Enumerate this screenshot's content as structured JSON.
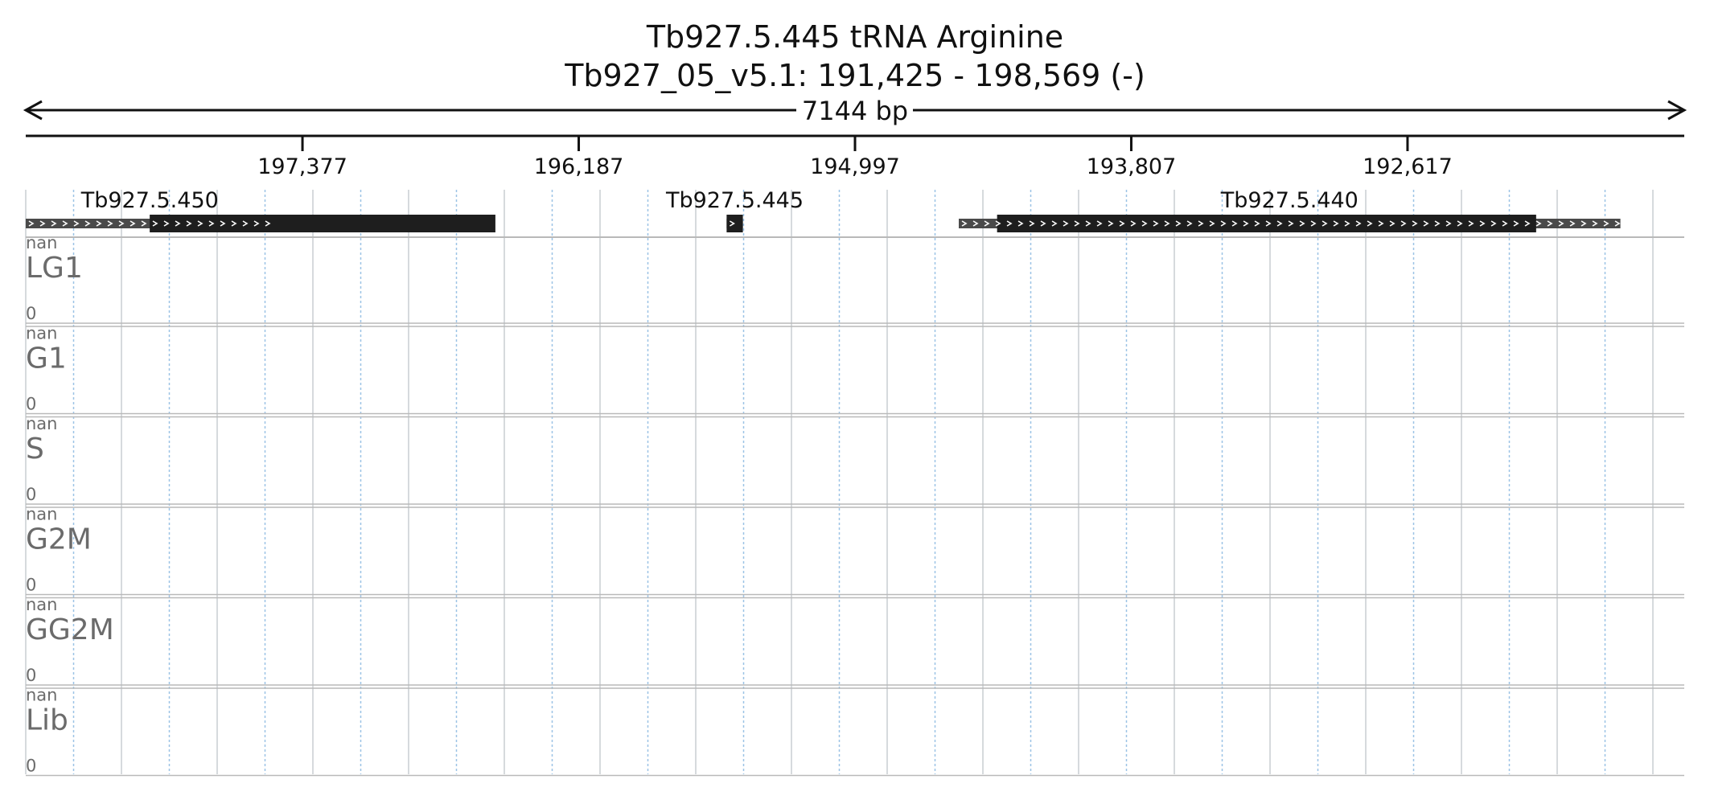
{
  "header": {
    "title": "Tb927.5.445  tRNA Arginine",
    "region": "Tb927_05_v5.1: 191,425 - 198,569 (-)",
    "span": "7144 bp"
  },
  "axis": {
    "start": 198569,
    "end": 191425,
    "strand": "-",
    "ticks": [
      {
        "value": 197377,
        "label": "197,377"
      },
      {
        "value": 196187,
        "label": "196,187"
      },
      {
        "value": 194997,
        "label": "194,997"
      },
      {
        "value": 193807,
        "label": "193,807"
      },
      {
        "value": 192617,
        "label": "192,617"
      }
    ]
  },
  "genes": [
    {
      "name": "Tb927.5.450",
      "tx_start": 198569,
      "tx_end": 197500,
      "cds_start": 198035,
      "cds_end": 196546
    },
    {
      "name": "Tb927.5.445",
      "tx_start": 195550,
      "tx_end": 195480,
      "cds_start": 195550,
      "cds_end": 195480
    },
    {
      "name": "Tb927.5.440",
      "tx_start": 194550,
      "tx_end": 191700,
      "cds_start": 194385,
      "cds_end": 192063
    }
  ],
  "tracks": [
    {
      "name": "LG1",
      "max": "nan",
      "min": "0"
    },
    {
      "name": "G1",
      "max": "nan",
      "min": "0"
    },
    {
      "name": "S",
      "max": "nan",
      "min": "0"
    },
    {
      "name": "G2M",
      "max": "nan",
      "min": "0"
    },
    {
      "name": "GG2M",
      "max": "nan",
      "min": "0"
    },
    {
      "name": "Lib",
      "max": "nan",
      "min": "0"
    }
  ],
  "colors": {
    "gene_fill": "#1e1e1e",
    "utr_fill": "#4a4a4a",
    "grid_minor": "#9cc3e6",
    "grid_major": "#c9cdd2",
    "track_label": "#6b6b6b",
    "separator": "#b9b9b9"
  }
}
